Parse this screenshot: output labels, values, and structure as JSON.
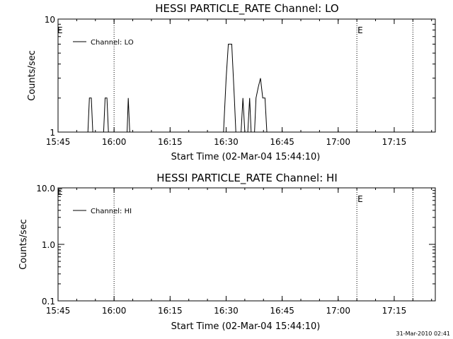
{
  "footer": {
    "timestamp": "31-Mar-2010 02:41"
  },
  "chart_data": [
    {
      "type": "line",
      "title": "HESSI PARTICLE_RATE Channel: LO",
      "xlabel": "Start Time (02-Mar-04 15:44:10)",
      "ylabel": "Counts/sec",
      "yscale": "log",
      "ylim": [
        1,
        10
      ],
      "xlim_minutes_after_1545": [
        0,
        101
      ],
      "xticks": [
        "15:45",
        "16:00",
        "16:15",
        "16:30",
        "16:45",
        "17:00",
        "17:15"
      ],
      "yticks": [
        "1",
        "10"
      ],
      "grid": false,
      "legend": {
        "label": "Channel: LO",
        "position": "top-left"
      },
      "event_markers": [
        {
          "time": "16:00",
          "label": ""
        },
        {
          "time": "17:05",
          "label": "E"
        },
        {
          "time": "17:20",
          "label": ""
        }
      ],
      "left_marker_label": "E",
      "series": [
        {
          "name": "Channel: LO",
          "points": [
            [
              8.0,
              1
            ],
            [
              8.4,
              2
            ],
            [
              8.9,
              2
            ],
            [
              9.3,
              1
            ],
            [
              12.2,
              1
            ],
            [
              12.6,
              2
            ],
            [
              13.1,
              2
            ],
            [
              13.5,
              1
            ],
            [
              18.5,
              1
            ],
            [
              18.8,
              2
            ],
            [
              19.2,
              1
            ],
            [
              44.3,
              1
            ],
            [
              45.0,
              3
            ],
            [
              45.6,
              6
            ],
            [
              46.5,
              6
            ],
            [
              47.2,
              2
            ],
            [
              47.6,
              1
            ],
            [
              49.0,
              1
            ],
            [
              49.5,
              2
            ],
            [
              50.0,
              1
            ],
            [
              50.8,
              1
            ],
            [
              51.3,
              2
            ],
            [
              51.7,
              1
            ],
            [
              52.6,
              1
            ],
            [
              53.0,
              2
            ],
            [
              53.6,
              2.5
            ],
            [
              54.2,
              3
            ],
            [
              54.8,
              2
            ],
            [
              55.4,
              2
            ],
            [
              55.9,
              1
            ]
          ]
        }
      ]
    },
    {
      "type": "line",
      "title": "HESSI PARTICLE_RATE Channel: HI",
      "xlabel": "Start Time (02-Mar-04 15:44:10)",
      "ylabel": "Counts/sec",
      "yscale": "log",
      "ylim": [
        0.1,
        10
      ],
      "xlim_minutes_after_1545": [
        0,
        101
      ],
      "xticks": [
        "15:45",
        "16:00",
        "16:15",
        "16:30",
        "16:45",
        "17:00",
        "17:15"
      ],
      "yticks": [
        "0.1",
        "1.0",
        "10.0"
      ],
      "grid": false,
      "legend": {
        "label": "Channel: HI",
        "position": "top-left"
      },
      "event_markers": [
        {
          "time": "16:00",
          "label": ""
        },
        {
          "time": "17:05",
          "label": "E"
        },
        {
          "time": "17:20",
          "label": ""
        }
      ],
      "left_marker_label": "E",
      "series": [
        {
          "name": "Channel: HI",
          "points": []
        }
      ]
    }
  ]
}
